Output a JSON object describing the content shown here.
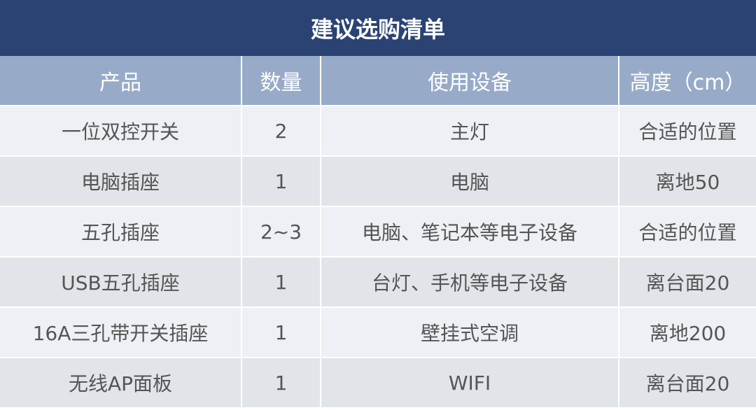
{
  "title": "建议选购清单",
  "colors": {
    "title_bg": "#2a4372",
    "header_bg": "#97abc8",
    "row_odd": "#edf0f4",
    "row_even": "#e1e4e9"
  },
  "headers": [
    "产品",
    "数量",
    "使用设备",
    "高度（cm）"
  ],
  "rows": [
    [
      "一位双控开关",
      "2",
      "主灯",
      "合适的位置"
    ],
    [
      "电脑插座",
      "1",
      "电脑",
      "离地50"
    ],
    [
      "五孔插座",
      "2~3",
      "电脑、笔记本等电子设备",
      "合适的位置"
    ],
    [
      "USB五孔插座",
      "1",
      "台灯、手机等电子设备",
      "离台面20"
    ],
    [
      "16A三孔带开关插座",
      "1",
      "壁挂式空调",
      "离地200"
    ],
    [
      "无线AP面板",
      "1",
      "WIFI",
      "离台面20"
    ]
  ]
}
